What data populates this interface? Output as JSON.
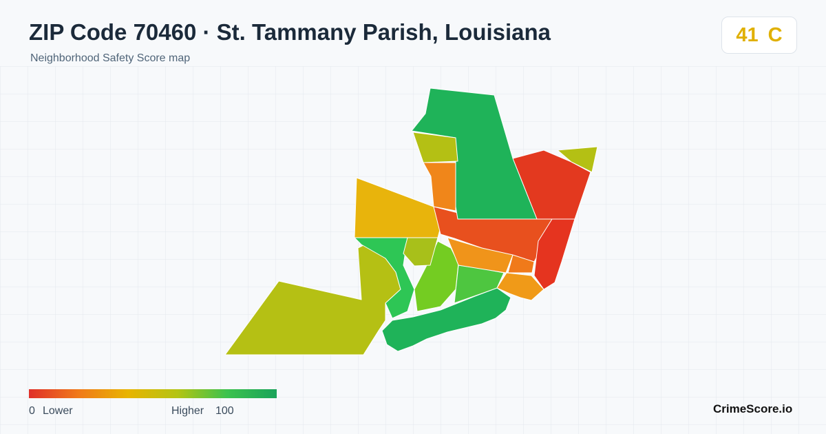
{
  "header": {
    "title": "ZIP Code 70460 · St. Tammany Parish, Louisiana",
    "subtitle": "Neighborhood Safety Score map"
  },
  "score": {
    "value": "41",
    "grade": "C"
  },
  "legend": {
    "min": "0",
    "min_label": "Lower",
    "max_label": "Higher",
    "max": "100"
  },
  "brand": "CrimeScore.io"
}
